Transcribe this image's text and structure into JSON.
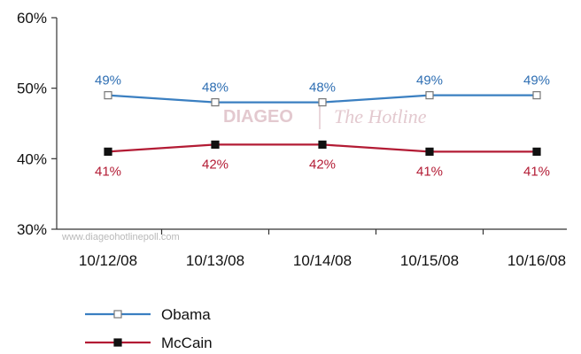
{
  "chart_data": {
    "type": "line",
    "categories": [
      "10/12/08",
      "10/13/08",
      "10/14/08",
      "10/15/08",
      "10/16/08"
    ],
    "series": [
      {
        "name": "Obama",
        "values": [
          49,
          48,
          48,
          49,
          49
        ],
        "labels": [
          "49%",
          "48%",
          "48%",
          "49%",
          "49%"
        ],
        "color": "#3a7fc1",
        "marker_fill": "#ffffff",
        "marker_stroke": "#777777",
        "label_color": "#2f6fb3",
        "label_position": "above"
      },
      {
        "name": "McCain",
        "values": [
          41,
          42,
          42,
          41,
          41
        ],
        "labels": [
          "41%",
          "42%",
          "42%",
          "41%",
          "41%"
        ],
        "color": "#b31b34",
        "marker_fill": "#111111",
        "marker_stroke": "#111111",
        "label_color": "#b31b34",
        "label_position": "below"
      }
    ],
    "y_ticks": [
      {
        "value": 30,
        "label": "30%"
      },
      {
        "value": 40,
        "label": "40%"
      },
      {
        "value": 50,
        "label": "50%"
      },
      {
        "value": 60,
        "label": "60%"
      }
    ],
    "ylim": [
      30,
      60
    ],
    "grid": false,
    "legend_position": "bottom-left",
    "watermark": {
      "brand": "DIAGEO",
      "script": "The Hotline",
      "url": "www.diageohotlinepoll.com"
    }
  }
}
